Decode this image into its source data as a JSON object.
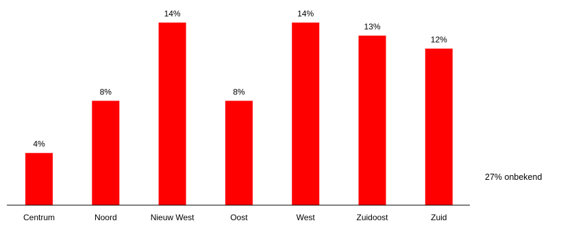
{
  "chart_data": {
    "type": "bar",
    "title": "",
    "xlabel": "",
    "ylabel": "",
    "categories": [
      "Centrum",
      "Noord",
      "Nieuw West",
      "Oost",
      "West",
      "Zuidoost",
      "Zuid"
    ],
    "values": [
      4,
      8,
      14,
      8,
      14,
      13,
      12
    ],
    "value_labels": [
      "4%",
      "8%",
      "14%",
      "8%",
      "14%",
      "13%",
      "12%"
    ],
    "unit": "%",
    "ylim": [
      0,
      14
    ],
    "grid": false,
    "bar_color": "#ff0000"
  },
  "annotation": {
    "text": "27% onbekend"
  }
}
